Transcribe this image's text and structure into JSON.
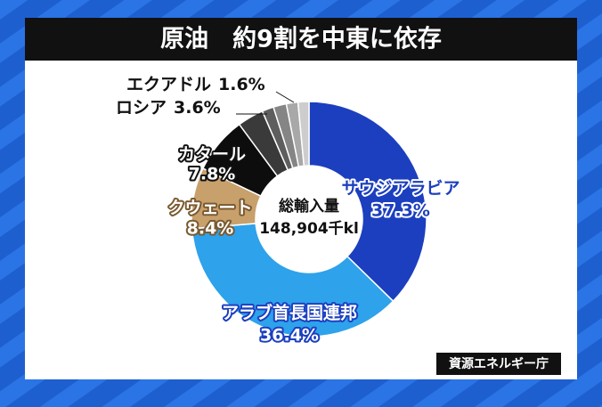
{
  "chart_data": {
    "type": "pie",
    "donut": true,
    "title": "原油　約9割を中東に依存",
    "center_title": "総輸入量",
    "center_value": "148,904千kl",
    "source": "資源エネルギー庁",
    "categories": [
      "サウジアラビア",
      "アラブ首長国連邦",
      "クウェート",
      "カタール",
      "ロシア",
      "エクアドル",
      null,
      null,
      null
    ],
    "values": [
      37.3,
      36.4,
      8.4,
      7.8,
      3.6,
      1.6,
      1.8,
      1.6,
      1.5
    ],
    "value_labels": [
      "37.3%",
      "36.4%",
      "8.4%",
      "7.8%",
      "3.6%",
      "1.6%",
      null,
      null,
      null
    ],
    "colors": [
      "#1c3fbf",
      "#2ea2ea",
      "#c8a06c",
      "#0d0d0d",
      "#3a3a3a",
      "#5e5e5e",
      "#858585",
      "#a8a8a8",
      "#cdcdcd"
    ]
  }
}
